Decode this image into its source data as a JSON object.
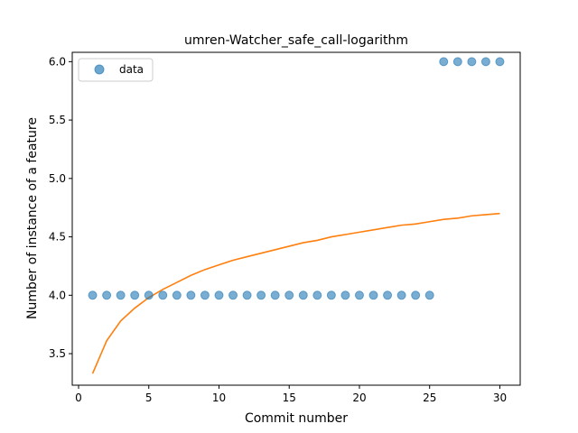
{
  "chart_data": {
    "type": "scatter",
    "title": "umren-Watcher_safe_call-logarithm",
    "xlabel": "Commit number",
    "ylabel": "Number of instance of a feature",
    "xlim": [
      -0.45,
      31.45
    ],
    "ylim": [
      3.23,
      6.08
    ],
    "xticks": [
      0,
      5,
      10,
      15,
      20,
      25,
      30
    ],
    "yticks": [
      3.5,
      4.0,
      4.5,
      5.0,
      5.5,
      6.0
    ],
    "xtick_labels": [
      "0",
      "5",
      "10",
      "15",
      "20",
      "25",
      "30"
    ],
    "ytick_labels": [
      "3.5",
      "4.0",
      "4.5",
      "5.0",
      "5.5",
      "6.0"
    ],
    "grid": false,
    "legend": {
      "position": "top-left",
      "entries": [
        "data"
      ]
    },
    "series": [
      {
        "name": "data",
        "type": "scatter",
        "color": "#1f77b4",
        "x": [
          1,
          2,
          3,
          4,
          5,
          6,
          7,
          8,
          9,
          10,
          11,
          12,
          13,
          14,
          15,
          16,
          17,
          18,
          19,
          20,
          21,
          22,
          23,
          24,
          25,
          26,
          27,
          28,
          29,
          30
        ],
        "y": [
          4,
          4,
          4,
          4,
          4,
          4,
          4,
          4,
          4,
          4,
          4,
          4,
          4,
          4,
          4,
          4,
          4,
          4,
          4,
          4,
          4,
          4,
          4,
          4,
          4,
          6,
          6,
          6,
          6,
          6
        ]
      },
      {
        "type": "line",
        "color": "#ff7f0e",
        "x": [
          1,
          2,
          3,
          4,
          5,
          6,
          7,
          8,
          9,
          10,
          11,
          12,
          13,
          14,
          15,
          16,
          17,
          18,
          19,
          20,
          21,
          22,
          23,
          24,
          25,
          26,
          27,
          28,
          29,
          30
        ],
        "y": [
          3.33,
          3.61,
          3.78,
          3.89,
          3.98,
          4.05,
          4.11,
          4.17,
          4.22,
          4.26,
          4.3,
          4.33,
          4.36,
          4.39,
          4.42,
          4.45,
          4.47,
          4.5,
          4.52,
          4.54,
          4.56,
          4.58,
          4.6,
          4.61,
          4.63,
          4.65,
          4.66,
          4.68,
          4.69,
          4.7
        ]
      }
    ]
  }
}
